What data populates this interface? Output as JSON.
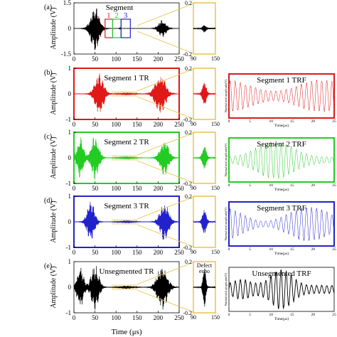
{
  "figure": {
    "y_axis_label": "Amplitude (V)",
    "x_axis_label": "Time (μs)",
    "zoom_box_color": "#e8c44a",
    "highlight_color": "#f6e3b4"
  },
  "chart_data": [
    {
      "panel": "(a)",
      "type": "line",
      "color": "#000000",
      "title": "Segment",
      "segment_labels": [
        "1",
        "2",
        "3"
      ],
      "segment_colors": [
        "#e01818",
        "#22cc22",
        "#2222cc"
      ],
      "xlim": [
        0,
        250
      ],
      "ylim": [
        -1.5,
        1.5
      ],
      "xticks": [
        0,
        50,
        100,
        150,
        200,
        250
      ],
      "yticks": [
        1.5,
        0,
        -1.5
      ],
      "bursts": [
        {
          "center": 50,
          "width": 14,
          "amp": 1.35
        },
        {
          "center": 110,
          "width": 2,
          "amp": 0.08
        },
        {
          "center": 210,
          "width": 12,
          "amp": 0.55
        }
      ],
      "zoom": {
        "xlim": [
          90,
          150
        ],
        "ylim": [
          -0.2,
          0.2
        ],
        "yticks": [
          0.2,
          -0.2
        ],
        "xticks": [
          90,
          150
        ]
      },
      "trf": null
    },
    {
      "panel": "(b)",
      "type": "line",
      "color": "#e01818",
      "title": "Segment 1 TR",
      "xlim": [
        0,
        250
      ],
      "ylim": [
        -1,
        1
      ],
      "xticks": [
        0,
        50,
        100,
        150,
        200,
        250
      ],
      "yticks": [
        1,
        0,
        -1
      ],
      "bursts": [
        {
          "center": 60,
          "width": 14,
          "amp": 0.85
        },
        {
          "center": 125,
          "width": 20,
          "amp": 0.05
        },
        {
          "center": 205,
          "width": 16,
          "amp": 0.85
        }
      ],
      "zoom": {
        "xlim": [
          90,
          150
        ],
        "ylim": [
          -0.2,
          0.2
        ],
        "yticks": [
          0.2,
          -0.2
        ],
        "xticks": [
          90,
          150
        ]
      },
      "trf": {
        "title": "Segment 1 TRF",
        "ylabel": "Normalized amplitude(V)",
        "xlabel": "Time(μs)",
        "xticks": [
          0,
          5,
          10,
          15,
          20,
          25
        ]
      }
    },
    {
      "panel": "(c)",
      "type": "line",
      "color": "#22cc22",
      "title": "Segment 2 TR",
      "xlim": [
        0,
        250
      ],
      "ylim": [
        -1,
        1
      ],
      "xticks": [
        0,
        50,
        100,
        150,
        200,
        250
      ],
      "yticks": [
        1,
        0,
        -1
      ],
      "bursts": [
        {
          "center": 15,
          "width": 10,
          "amp": 0.85
        },
        {
          "center": 50,
          "width": 12,
          "amp": 0.9
        },
        {
          "center": 125,
          "width": 20,
          "amp": 0.06
        },
        {
          "center": 215,
          "width": 14,
          "amp": 0.75
        }
      ],
      "zoom": {
        "xlim": [
          90,
          150
        ],
        "ylim": [
          -0.2,
          0.2
        ],
        "yticks": [
          0.2,
          -0.2
        ],
        "xticks": [
          90,
          150
        ]
      },
      "trf": {
        "title": "Segment 2 TRF",
        "ylabel": "Normalized amplitude(V)",
        "xlabel": "Time(μs)",
        "xticks": [
          0,
          5,
          10,
          15,
          20,
          25
        ]
      }
    },
    {
      "panel": "(d)",
      "type": "line",
      "color": "#2222cc",
      "title": "Segment 3 TR",
      "xlim": [
        0,
        250
      ],
      "ylim": [
        -1,
        1
      ],
      "xticks": [
        0,
        50,
        100,
        150,
        200,
        250
      ],
      "yticks": [
        1,
        0,
        -1
      ],
      "bursts": [
        {
          "center": 40,
          "width": 12,
          "amp": 0.8
        },
        {
          "center": 125,
          "width": 20,
          "amp": 0.05
        },
        {
          "center": 215,
          "width": 14,
          "amp": 0.8
        }
      ],
      "zoom": {
        "xlim": [
          90,
          150
        ],
        "ylim": [
          -0.2,
          0.2
        ],
        "yticks": [
          0.2,
          -0.2
        ],
        "xticks": [
          90,
          150
        ]
      },
      "trf": {
        "title": "Segment 3 TRF",
        "ylabel": "Normalized amplitude(V)",
        "xlabel": "Time(μs)",
        "xticks": [
          0,
          5,
          10,
          15,
          20,
          25
        ]
      }
    },
    {
      "panel": "(e)",
      "type": "line",
      "color": "#000000",
      "title": "Unsegmented TR",
      "xlim": [
        0,
        250
      ],
      "ylim": [
        -1,
        1
      ],
      "xticks": [
        0,
        50,
        100,
        150,
        200,
        250
      ],
      "yticks": [
        1,
        0,
        -1
      ],
      "bursts": [
        {
          "center": 15,
          "width": 10,
          "amp": 0.85
        },
        {
          "center": 50,
          "width": 12,
          "amp": 0.9
        },
        {
          "center": 125,
          "width": 20,
          "amp": 0.06
        },
        {
          "center": 210,
          "width": 16,
          "amp": 0.9
        }
      ],
      "zoom": {
        "xlim": [
          90,
          150
        ],
        "ylim": [
          -0.2,
          0.2
        ],
        "yticks": [
          0.2,
          -0.2
        ],
        "xticks": [
          90,
          150
        ],
        "annotation": "Defect echo"
      },
      "trf": {
        "title": "Unsegmented    TRF",
        "ylabel": "Normalized amplitude(V)",
        "xlabel": "Time(μs)",
        "xticks": [
          0,
          5,
          10,
          15,
          20,
          25
        ]
      }
    }
  ]
}
